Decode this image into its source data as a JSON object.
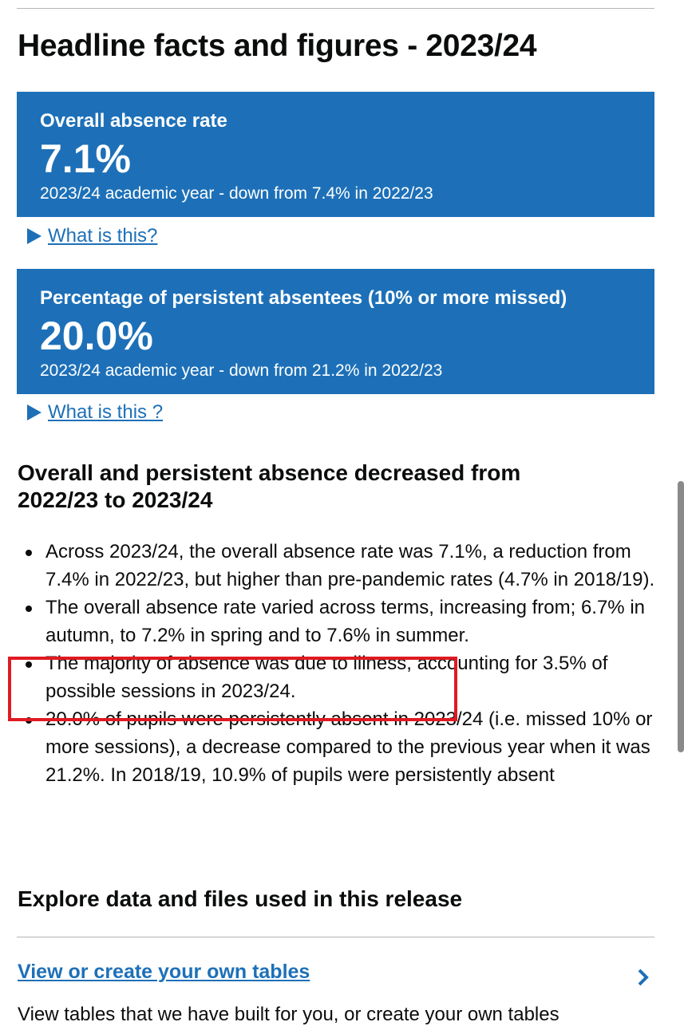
{
  "page_title": "Headline facts and figures - 2023/24",
  "cards": [
    {
      "label": "Overall absence rate",
      "value": "7.1%",
      "sub": "2023/24 academic year - down from 7.4% in 2022/23",
      "details": "What is this?"
    },
    {
      "label": "Percentage of persistent absentees (10% or more missed)",
      "value": "20.0%",
      "sub": "2023/24 academic year - down from 21.2% in 2022/23",
      "details": "What is this ?"
    }
  ],
  "section": {
    "heading": "Overall and persistent absence decreased from 2022/23 to 2023/24",
    "bullets": [
      "Across 2023/24, the overall absence rate was 7.1%, a reduction from 7.4% in 2022/23, but higher than pre-pandemic rates (4.7% in 2018/19).",
      "The overall absence rate varied across terms, increasing from; 6.7% in autumn, to 7.2% in spring and to 7.6% in summer.",
      "The majority of absence was due to illness, accounting for 3.5% of possible sessions in 2023/24.",
      "20.0% of pupils were persistently absent in 2023/24 (i.e. missed 10% or more sessions), a decrease compared to the previous year when it was 21.2%. In 2018/19, 10.9% of pupils were persistently absent"
    ]
  },
  "explore": {
    "heading": "Explore data and files used in this release",
    "link": "View or create your own tables",
    "description": "View tables that we have built for you, or create your own tables"
  },
  "colors": {
    "brand_blue": "#1d70b8",
    "annotation_red": "#e01a22",
    "text": "#0b0c0c"
  },
  "icons": [
    "triangle-right-icon",
    "chevron-right-icon"
  ]
}
